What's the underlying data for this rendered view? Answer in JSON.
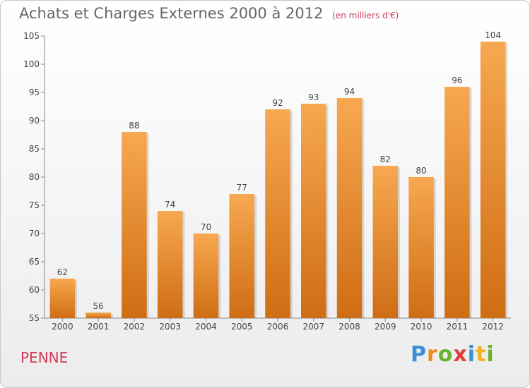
{
  "title": "Achats et Charges Externes 2000 à 2012",
  "subtitle": "(en milliers d'€)",
  "city": "PENNE",
  "logo": {
    "letters": [
      "P",
      "r",
      "o",
      "x",
      "i",
      "t",
      "i"
    ],
    "colors": [
      "#3a8fd6",
      "#f08c1e",
      "#6ab42c",
      "#e03c3c",
      "#3a8fd6",
      "#f0b41e",
      "#6ab42c"
    ]
  },
  "colors": {
    "bar_top": "#f7a850",
    "bar_bottom": "#cf6d14",
    "title": "#666666",
    "accent": "#d23c5a"
  },
  "chart_data": {
    "type": "bar",
    "categories": [
      "2000",
      "2001",
      "2002",
      "2003",
      "2004",
      "2005",
      "2006",
      "2007",
      "2008",
      "2009",
      "2010",
      "2011",
      "2012"
    ],
    "values": [
      62,
      56,
      88,
      74,
      70,
      77,
      92,
      93,
      94,
      82,
      80,
      96,
      104
    ],
    "title": "Achats et Charges Externes 2000 à 2012",
    "subtitle": "(en milliers d'€)",
    "xlabel": "",
    "ylabel": "",
    "ylim": [
      55,
      105
    ],
    "yticks": [
      55,
      60,
      65,
      70,
      75,
      80,
      85,
      90,
      95,
      100,
      105
    ],
    "grid": false,
    "legend": "none"
  }
}
